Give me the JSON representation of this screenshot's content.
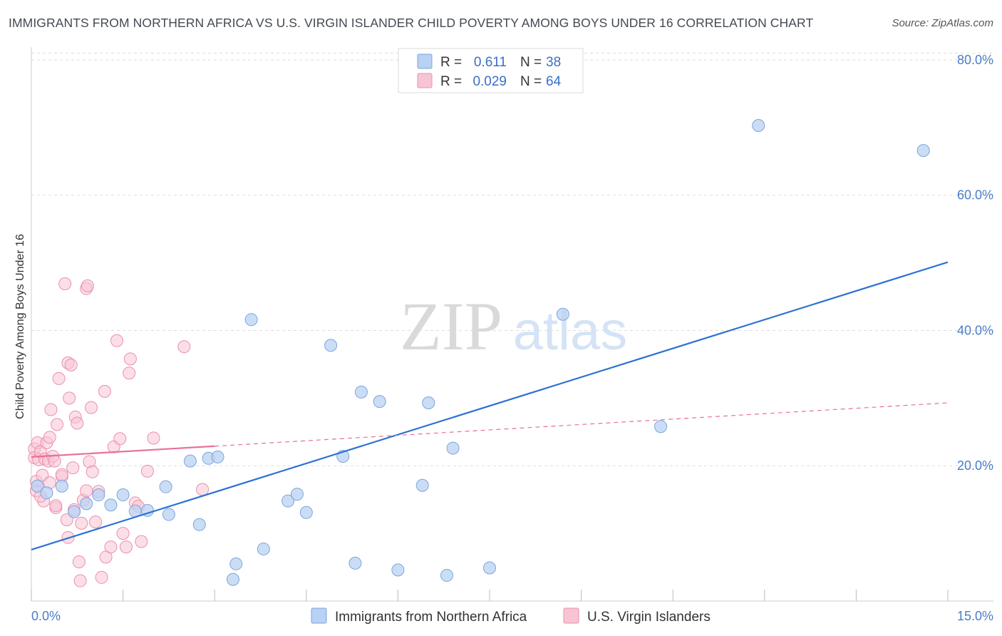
{
  "title": "IMMIGRANTS FROM NORTHERN AFRICA VS U.S. VIRGIN ISLANDER CHILD POVERTY AMONG BOYS UNDER 16 CORRELATION CHART",
  "source": "Source: ZipAtlas.com",
  "watermark": {
    "zip": "ZIP",
    "atlas": "atlas"
  },
  "colors": {
    "blue_fill": "#b9d1f2",
    "blue_stroke": "#7aa5e0",
    "blue_line": "#2e72d2",
    "pink_fill": "#f7c4d4",
    "pink_stroke": "#ec8fae",
    "pink_line": "#e8709a",
    "grid": "#dddddd",
    "tick_label": "#4a7cc9"
  },
  "legend": {
    "r_label": "R =",
    "n_label": "N =",
    "blue": {
      "r": "0.611",
      "n": "38"
    },
    "pink": {
      "r": "0.029",
      "n": "64"
    }
  },
  "chart_data": {
    "type": "scatter",
    "title": "IMMIGRANTS FROM NORTHERN AFRICA VS U.S. VIRGIN ISLANDER CHILD POVERTY AMONG BOYS UNDER 16 CORRELATION CHART",
    "xlabel": "",
    "ylabel": "Child Poverty Among Boys Under 16",
    "xlim": [
      0,
      15
    ],
    "ylim": [
      0,
      82
    ],
    "x_tick_labels": {
      "min": "0.0%",
      "max": "15.0%"
    },
    "y_ticks": [
      20,
      40,
      60,
      80
    ],
    "y_tick_labels": [
      "20.0%",
      "40.0%",
      "60.0%",
      "80.0%"
    ],
    "grid": true,
    "legend_position": "top-center",
    "series": [
      {
        "name": "Immigrants from Northern Africa",
        "color": "#b9d1f2",
        "trend": {
          "x": [
            0,
            15
          ],
          "y": [
            7.6,
            50.1
          ],
          "style": "solid"
        },
        "points": [
          [
            0.1,
            17.0
          ],
          [
            0.25,
            16.0
          ],
          [
            0.5,
            17.0
          ],
          [
            0.7,
            13.2
          ],
          [
            0.9,
            14.4
          ],
          [
            1.1,
            15.7
          ],
          [
            1.3,
            14.2
          ],
          [
            1.5,
            15.7
          ],
          [
            1.7,
            13.3
          ],
          [
            1.9,
            13.4
          ],
          [
            2.2,
            16.9
          ],
          [
            2.25,
            12.8
          ],
          [
            2.6,
            20.7
          ],
          [
            2.75,
            11.3
          ],
          [
            2.9,
            21.1
          ],
          [
            3.05,
            21.3
          ],
          [
            3.3,
            3.2
          ],
          [
            3.35,
            5.5
          ],
          [
            3.6,
            41.6
          ],
          [
            3.8,
            7.7
          ],
          [
            4.2,
            14.8
          ],
          [
            4.35,
            15.8
          ],
          [
            4.5,
            13.1
          ],
          [
            4.9,
            37.8
          ],
          [
            5.1,
            21.4
          ],
          [
            5.3,
            5.6
          ],
          [
            5.4,
            30.9
          ],
          [
            5.7,
            29.5
          ],
          [
            6.0,
            4.6
          ],
          [
            6.4,
            17.1
          ],
          [
            6.5,
            29.3
          ],
          [
            6.8,
            3.8
          ],
          [
            6.9,
            22.6
          ],
          [
            7.5,
            4.9
          ],
          [
            8.7,
            42.4
          ],
          [
            10.3,
            25.8
          ],
          [
            11.9,
            70.3
          ],
          [
            14.6,
            66.6
          ]
        ]
      },
      {
        "name": "U.S. Virgin Islanders",
        "color": "#f7c4d4",
        "trend": {
          "x": [
            0,
            3.0
          ],
          "y": [
            21.3,
            22.9
          ],
          "style": "solid",
          "extended": {
            "x": [
              3.0,
              15
            ],
            "y": [
              22.9,
              29.3
            ],
            "style": "dashed"
          }
        },
        "points": [
          [
            0.05,
            22.5
          ],
          [
            0.05,
            21.2
          ],
          [
            0.08,
            17.7
          ],
          [
            0.08,
            16.3
          ],
          [
            0.1,
            23.4
          ],
          [
            0.12,
            20.9
          ],
          [
            0.15,
            22.1
          ],
          [
            0.18,
            18.6
          ],
          [
            0.2,
            14.8
          ],
          [
            0.22,
            21.0
          ],
          [
            0.25,
            23.4
          ],
          [
            0.28,
            20.7
          ],
          [
            0.3,
            17.5
          ],
          [
            0.3,
            24.2
          ],
          [
            0.32,
            28.3
          ],
          [
            0.35,
            21.4
          ],
          [
            0.38,
            20.7
          ],
          [
            0.4,
            13.8
          ],
          [
            0.4,
            14.1
          ],
          [
            0.42,
            26.1
          ],
          [
            0.45,
            32.9
          ],
          [
            0.5,
            18.4
          ],
          [
            0.5,
            18.7
          ],
          [
            0.55,
            46.9
          ],
          [
            0.6,
            9.4
          ],
          [
            0.6,
            35.2
          ],
          [
            0.62,
            30.0
          ],
          [
            0.65,
            34.9
          ],
          [
            0.68,
            19.7
          ],
          [
            0.7,
            13.5
          ],
          [
            0.72,
            27.2
          ],
          [
            0.75,
            26.3
          ],
          [
            0.78,
            5.8
          ],
          [
            0.8,
            3.0
          ],
          [
            0.82,
            11.5
          ],
          [
            0.85,
            14.9
          ],
          [
            0.9,
            46.2
          ],
          [
            0.9,
            16.3
          ],
          [
            0.92,
            46.6
          ],
          [
            0.95,
            20.6
          ],
          [
            0.98,
            28.6
          ],
          [
            1.0,
            19.1
          ],
          [
            1.05,
            11.7
          ],
          [
            1.1,
            16.2
          ],
          [
            1.15,
            3.5
          ],
          [
            1.2,
            31.0
          ],
          [
            1.22,
            6.5
          ],
          [
            1.3,
            8.0
          ],
          [
            1.35,
            22.8
          ],
          [
            1.4,
            38.5
          ],
          [
            1.45,
            24.0
          ],
          [
            1.5,
            10.0
          ],
          [
            1.55,
            8.0
          ],
          [
            1.6,
            33.7
          ],
          [
            1.62,
            35.8
          ],
          [
            1.7,
            14.5
          ],
          [
            1.75,
            14.0
          ],
          [
            1.8,
            8.8
          ],
          [
            1.9,
            19.2
          ],
          [
            2.0,
            24.1
          ],
          [
            2.5,
            37.6
          ],
          [
            2.8,
            16.5
          ],
          [
            0.15,
            15.5
          ],
          [
            0.58,
            12.0
          ]
        ]
      }
    ]
  },
  "bottom_legend": [
    {
      "label": "Immigrants from Northern Africa"
    },
    {
      "label": "U.S. Virgin Islanders"
    }
  ]
}
